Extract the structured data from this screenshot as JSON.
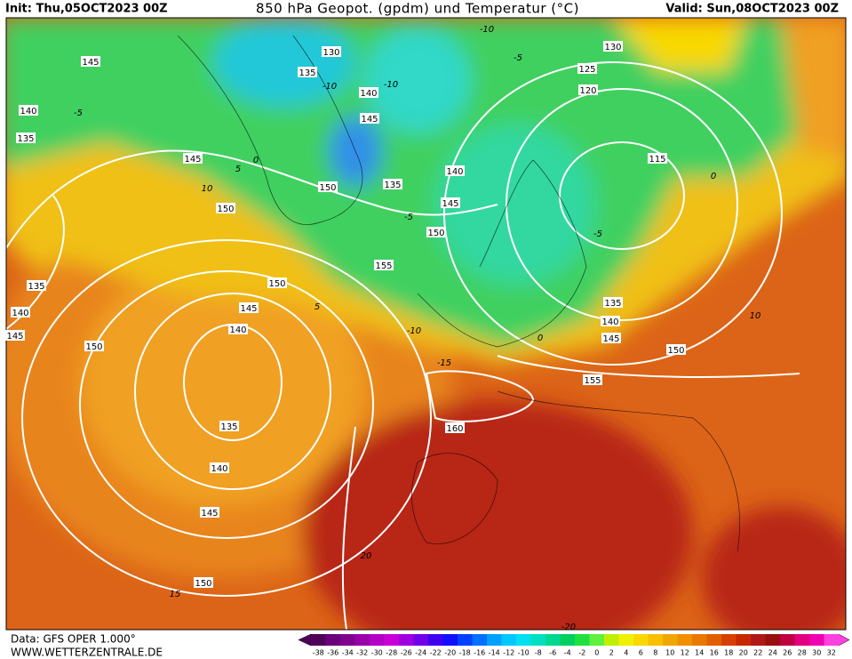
{
  "header": {
    "init": "Init: Thu,05OCT2023 00Z",
    "title": "850 hPa Geopot. (gpdm) und Temperatur (°C)",
    "valid": "Valid: Sun,08OCT2023 00Z"
  },
  "map": {
    "geopotential_labels": [
      "145",
      "130",
      "135",
      "130",
      "125",
      "120",
      "140",
      "140",
      "145",
      "135",
      "145",
      "115",
      "140",
      "150",
      "135",
      "145",
      "150",
      "150",
      "155",
      "150",
      "135",
      "145",
      "135",
      "140",
      "140",
      "140",
      "145",
      "145",
      "150",
      "150",
      "155",
      "160",
      "135",
      "140",
      "145",
      "150"
    ],
    "temperature_labels": [
      "-10",
      "-5",
      "-10",
      "-10",
      "-5",
      "5",
      "0",
      "10",
      "-5",
      "5",
      "0",
      "-10",
      "-15",
      "-5",
      "0",
      "10",
      "20",
      "15",
      "-20"
    ]
  },
  "colorbar": {
    "labels": [
      "-38",
      "-36",
      "-34",
      "-32",
      "-30",
      "-28",
      "-26",
      "-24",
      "-22",
      "-20",
      "-18",
      "-16",
      "-14",
      "-12",
      "-10",
      "-8",
      "-6",
      "-4",
      "-2",
      "0",
      "2",
      "4",
      "6",
      "8",
      "10",
      "12",
      "14",
      "16",
      "18",
      "20",
      "22",
      "24",
      "26",
      "28",
      "30",
      "32"
    ],
    "colors": [
      "#50005a",
      "#6a007a",
      "#80008e",
      "#9a00a8",
      "#b400c4",
      "#c800d8",
      "#a000e0",
      "#7000e8",
      "#4000f0",
      "#1010ff",
      "#0040ff",
      "#0070ff",
      "#00a0ff",
      "#00c8ff",
      "#00e0f0",
      "#00e0c0",
      "#00d890",
      "#00d060",
      "#20e040",
      "#60f040",
      "#c0f000",
      "#f0f000",
      "#f8d800",
      "#f8c000",
      "#f0a800",
      "#f09000",
      "#e87800",
      "#e06000",
      "#d84000",
      "#c82800",
      "#b01818",
      "#981010",
      "#c00040",
      "#e00080",
      "#f000b0",
      "#ff40e0"
    ]
  },
  "footer": {
    "data": "Data: GFS OPER 1.000°",
    "url": "WWW.WETTERZENTRALE.DE"
  }
}
